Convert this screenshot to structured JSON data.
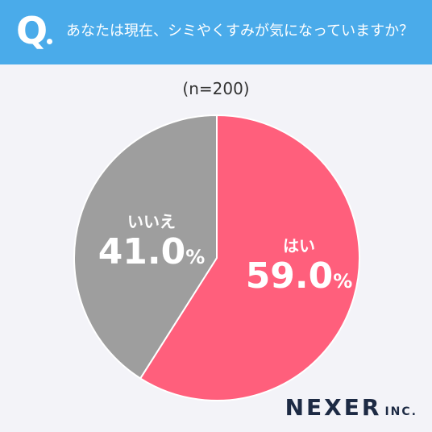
{
  "header": {
    "q_mark": "Q",
    "question": "あなたは現在、シミやくすみが気になっていますか？"
  },
  "sample_size": "(n=200)",
  "chart_data": {
    "type": "pie",
    "title": "あなたは現在、シミやくすみが気になっていますか？",
    "slices": [
      {
        "label": "はい",
        "value": 59.0,
        "display": "59.0",
        "color": "#ff5f7c"
      },
      {
        "label": "いいえ",
        "value": 41.0,
        "display": "41.0",
        "color": "#9e9e9e"
      }
    ],
    "unit": "%",
    "n": 200
  },
  "logo": {
    "name": "NEXER",
    "suffix": "INC."
  }
}
